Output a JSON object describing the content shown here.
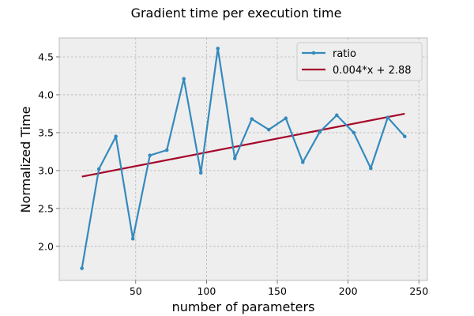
{
  "chart_data": {
    "type": "line",
    "title": "Gradient time per execution time",
    "xlabel": "number of parameters",
    "ylabel": "Normalized Time",
    "xlim": [
      -4,
      256
    ],
    "ylim": [
      1.55,
      4.75
    ],
    "xticks": [
      50,
      100,
      150,
      200,
      250
    ],
    "yticks": [
      2.0,
      2.5,
      3.0,
      3.5,
      4.0,
      4.5
    ],
    "x_tick_labels": [
      "50",
      "100",
      "150",
      "200",
      "250"
    ],
    "y_tick_labels": [
      "2.0",
      "2.5",
      "3.0",
      "3.5",
      "4.0",
      "4.5"
    ],
    "grid": true,
    "legend_position": "top-right",
    "series": [
      {
        "name": "ratio",
        "style": "line-with-markers",
        "color": "#348ABD",
        "x": [
          12,
          24,
          36,
          48,
          60,
          72,
          84,
          96,
          108,
          120,
          132,
          144,
          156,
          168,
          180,
          192,
          204,
          216,
          228,
          240
        ],
        "y": [
          1.71,
          3.02,
          3.45,
          2.1,
          3.2,
          3.27,
          4.21,
          2.97,
          4.61,
          3.16,
          3.68,
          3.54,
          3.69,
          3.11,
          3.51,
          3.73,
          3.5,
          3.03,
          3.7,
          3.45
        ]
      },
      {
        "name": "0.004*x + 2.88",
        "style": "line",
        "color": "#A60628",
        "x": [
          12,
          240
        ],
        "y": [
          2.92,
          3.75
        ]
      }
    ],
    "colors": {
      "plot_background": "#EEEEEE",
      "grid": "#B2B2B2",
      "axes_edge": "#BCBCBC"
    }
  }
}
